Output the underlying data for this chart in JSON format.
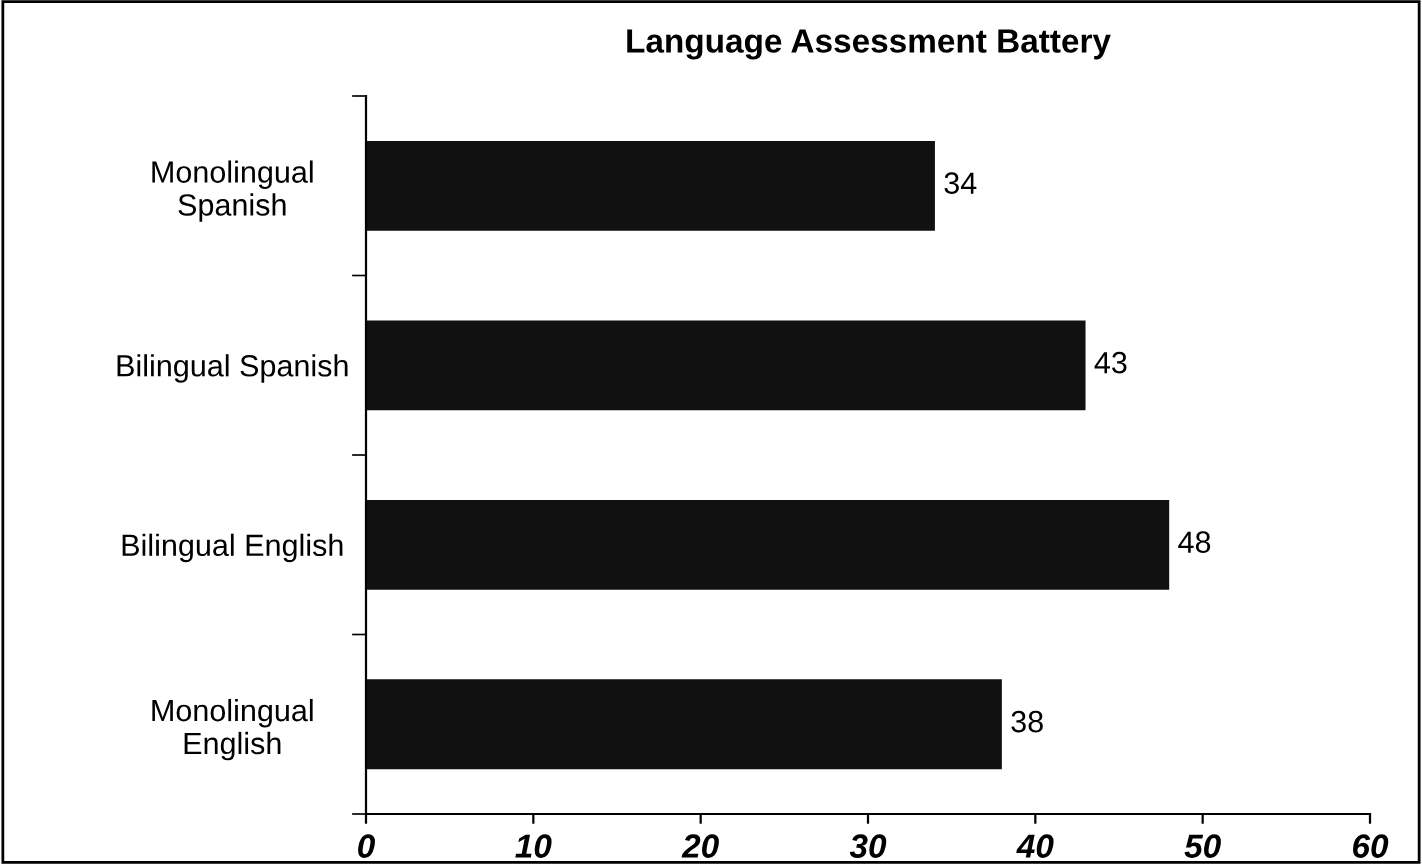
{
  "chart_data": {
    "type": "bar",
    "orientation": "horizontal",
    "title": "Language Assessment Battery",
    "categories": [
      "Monolingual\nSpanish",
      "Bilingual Spanish",
      "Bilingual English",
      "Monolingual\nEnglish"
    ],
    "values": [
      34,
      43,
      48,
      38
    ],
    "color": "#111111",
    "xlim": [
      0,
      60
    ],
    "xticks": [
      0,
      10,
      20,
      30,
      40,
      50,
      60
    ],
    "grid": false,
    "legend": false,
    "data_labels": true
  }
}
